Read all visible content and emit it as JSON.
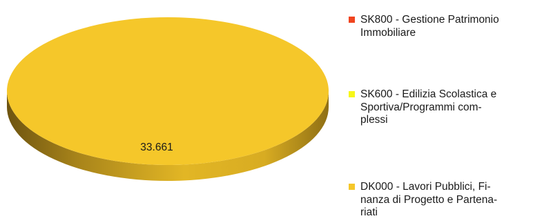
{
  "chart_data": {
    "type": "pie",
    "three_d": true,
    "legend_position": "right",
    "series": [
      {
        "name": "SK800 - Gestione Patrimonio Immobiliare",
        "value": 0,
        "color": "#f0441f"
      },
      {
        "name": "SK600 - Edilizia Scolastica e Sportiva/Programmi complessi",
        "value": 0,
        "color": "#f7f719"
      },
      {
        "name": "DK000 - Lavori Pubblici, Finanza di Progetto e Partenariati",
        "value": 33661,
        "color": "#f5c72a"
      }
    ],
    "data_labels": [
      "33.661"
    ]
  },
  "legend": {
    "items": [
      {
        "lines": [
          "SK800 - Gestione Patrimonio",
          "Immobiliare"
        ]
      },
      {
        "lines": [
          "SK600 - Edilizia Scolastica e",
          "Sportiva/Programmi com-",
          "plessi"
        ]
      },
      {
        "lines": [
          "DK000 - Lavori Pubblici, Fi-",
          "nanza di Progetto e Partena-",
          "riati"
        ]
      }
    ]
  }
}
